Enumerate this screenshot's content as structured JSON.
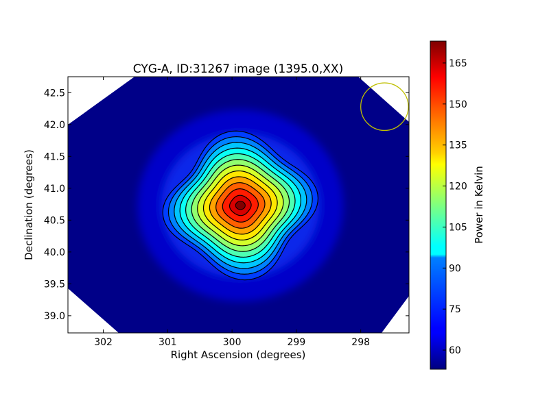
{
  "chart_data": {
    "type": "heatmap",
    "title": "CYG-A, ID:31267 image (1395.0,XX)",
    "xlabel": "Right Ascension (degrees)",
    "ylabel": "Declination (degrees)",
    "xlim": [
      302.55,
      297.25
    ],
    "ylim": [
      38.73,
      42.75
    ],
    "x_ticks": [
      302,
      301,
      300,
      299,
      298
    ],
    "x_tick_labels": [
      "302",
      "301",
      "300",
      "299",
      "298"
    ],
    "y_ticks": [
      39.0,
      39.5,
      40.0,
      40.5,
      41.0,
      41.5,
      42.0,
      42.5
    ],
    "y_tick_labels": [
      "39.0",
      "39.5",
      "40.0",
      "40.5",
      "41.0",
      "41.5",
      "42.0",
      "42.5"
    ],
    "colormap": "jet",
    "colorbar": {
      "label": "Power in Kelvin",
      "range": [
        53,
        173
      ],
      "ticks": [
        60,
        75,
        90,
        105,
        120,
        135,
        150,
        165
      ],
      "tick_labels": [
        "60",
        "75",
        "90",
        "105",
        "120",
        "135",
        "150",
        "165"
      ]
    },
    "source": {
      "peak_ra": 299.87,
      "peak_dec": 40.73,
      "peak_value": 170,
      "background_value": 55
    },
    "contour_count": 12,
    "beam_circle": {
      "ra": 297.63,
      "dec": 42.28,
      "radius_deg": 0.37,
      "color": "#bfbf00"
    },
    "grid": false
  }
}
